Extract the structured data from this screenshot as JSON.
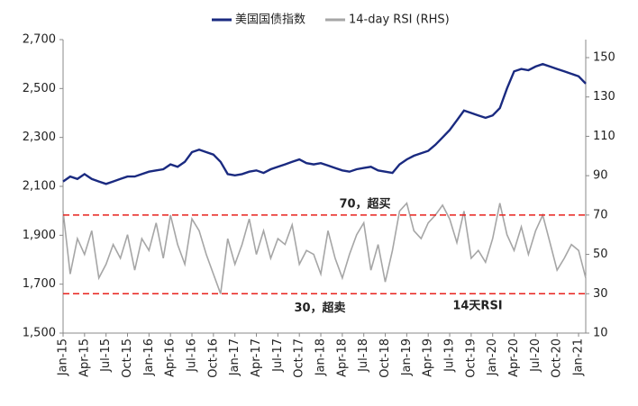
{
  "chart_data": {
    "type": "line",
    "categories": [
      "Jan-15",
      null,
      null,
      "Apr-15",
      null,
      null,
      "Jul-15",
      null,
      null,
      "Oct-15",
      null,
      null,
      "Jan-16",
      null,
      null,
      "Apr-16",
      null,
      null,
      "Jul-16",
      null,
      null,
      "Oct-16",
      null,
      null,
      "Jan-17",
      null,
      null,
      "Apr-17",
      null,
      null,
      "Jul-17",
      null,
      null,
      "Oct-17",
      null,
      null,
      "Jan-18",
      null,
      null,
      "Apr-18",
      null,
      null,
      "Jul-18",
      null,
      null,
      "Oct-18",
      null,
      null,
      "Jan-19",
      null,
      null,
      "Apr-19",
      null,
      null,
      "Jul-19",
      null,
      null,
      "Oct-19",
      null,
      null,
      "Jan-20",
      null,
      null,
      "Apr-20",
      null,
      null,
      "Jul-20",
      null,
      null,
      "Oct-20",
      null,
      null,
      "Jan-21",
      null
    ],
    "series": [
      {
        "name": "美国国债指数",
        "color": "#1a2a80",
        "axis": "y",
        "values": [
          2120,
          2140,
          2130,
          2150,
          2130,
          2120,
          2110,
          2120,
          2130,
          2140,
          2140,
          2150,
          2160,
          2165,
          2170,
          2190,
          2180,
          2200,
          2240,
          2250,
          2240,
          2230,
          2200,
          2150,
          2145,
          2150,
          2160,
          2165,
          2155,
          2170,
          2180,
          2190,
          2200,
          2210,
          2195,
          2190,
          2195,
          2185,
          2175,
          2165,
          2160,
          2170,
          2175,
          2180,
          2165,
          2160,
          2155,
          2190,
          2210,
          2225,
          2235,
          2245,
          2270,
          2300,
          2330,
          2370,
          2410,
          2400,
          2390,
          2380,
          2390,
          2420,
          2500,
          2570,
          2580,
          2575,
          2590,
          2600,
          2590,
          2580,
          2570,
          2560,
          2550,
          2520
        ]
      },
      {
        "name": "14-day RSI (RHS)",
        "color": "#a6a6a6",
        "axis": "y2",
        "values": [
          72,
          40,
          58,
          50,
          62,
          38,
          45,
          55,
          48,
          60,
          42,
          58,
          52,
          66,
          48,
          70,
          55,
          45,
          68,
          62,
          50,
          40,
          30,
          58,
          45,
          55,
          68,
          50,
          62,
          48,
          58,
          55,
          65,
          45,
          52,
          50,
          40,
          62,
          48,
          38,
          50,
          60,
          66,
          42,
          55,
          36,
          52,
          72,
          76,
          62,
          58,
          66,
          70,
          75,
          68,
          56,
          72,
          48,
          52,
          46,
          58,
          76,
          60,
          52,
          64,
          50,
          62,
          70,
          56,
          42,
          48,
          55,
          52,
          38
        ]
      }
    ],
    "ylim": [
      1500,
      2700
    ],
    "yticks": [
      {
        "value": 1500,
        "label": "1,500"
      },
      {
        "value": 1700,
        "label": "1,700"
      },
      {
        "value": 1900,
        "label": "1,900"
      },
      {
        "value": 2100,
        "label": "2,100"
      },
      {
        "value": 2300,
        "label": "2,300"
      },
      {
        "value": 2500,
        "label": "2,500"
      },
      {
        "value": 2700,
        "label": "2,700"
      }
    ],
    "y2lim": [
      10,
      150
    ],
    "y2ticks": [
      10,
      30,
      50,
      70,
      90,
      110,
      130,
      150
    ],
    "reference_lines": [
      {
        "value": 70,
        "label": "70，超买",
        "axis": "y2",
        "color": "#e8211c"
      },
      {
        "value": 30,
        "label": "30，超卖",
        "axis": "y2",
        "color": "#e8211c"
      }
    ],
    "annotations": [
      "14天RSI"
    ]
  }
}
